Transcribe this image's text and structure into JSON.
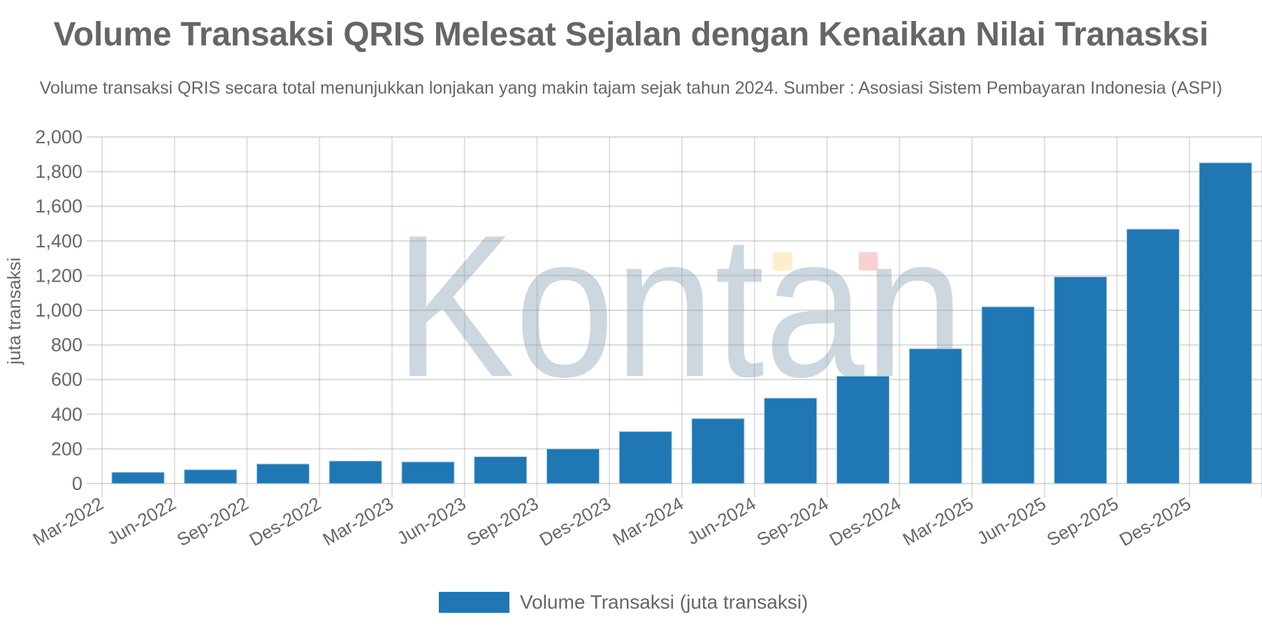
{
  "header": {
    "title": "Volume Transaksi QRIS Melesat Sejalan dengan Kenaikan Nilai Tranasksi",
    "subtitle": "Volume transaksi QRIS secara total menunjukkan lonjakan yang makin tajam sejak tahun 2024. Sumber : Asosiasi Sistem Pembayaran Indonesia (ASPI)"
  },
  "watermark": {
    "text": "Kontan",
    "color": "#ccd7df",
    "accent_yellow": "#fdefc9",
    "accent_red": "#f9d0d2"
  },
  "legend": {
    "label": "Volume Transaksi (juta transaksi)",
    "color": "#1f77b4"
  },
  "chart_data": {
    "type": "bar",
    "title": "Volume Transaksi QRIS Melesat Sejalan dengan Kenaikan Nilai Tranasksi",
    "subtitle": "Volume transaksi QRIS secara total menunjukkan lonjakan yang makin tajam sejak tahun 2024. Sumber : Asosiasi Sistem Pembayaran Indonesia (ASPI)",
    "xlabel": "",
    "ylabel": "juta transaksi",
    "ylim": [
      0,
      2000
    ],
    "yticks": [
      0,
      200,
      400,
      600,
      800,
      1000,
      1200,
      1400,
      1600,
      1800,
      2000
    ],
    "ytick_labels": [
      "0",
      "200",
      "400",
      "600",
      "800",
      "1,000",
      "1,200",
      "1,400",
      "1,600",
      "1,800",
      "2,000"
    ],
    "grid": true,
    "legend_position": "bottom",
    "categories": [
      "Mar-2022",
      "Jun-2022",
      "Sep-2022",
      "Des-2022",
      "Mar-2023",
      "Jun-2023",
      "Sep-2023",
      "Des-2023",
      "Mar-2024",
      "Jun-2024",
      "Sep-2024",
      "Des-2024",
      "Mar-2025",
      "Jun-2025",
      "Sep-2025",
      "Des-2025"
    ],
    "series": [
      {
        "name": "Volume Transaksi (juta transaksi)",
        "color": "#1f77b4",
        "values": [
          65,
          80,
          113,
          130,
          125,
          155,
          200,
          300,
          375,
          493,
          620,
          778,
          1020,
          1193,
          1468,
          1851
        ]
      }
    ]
  }
}
